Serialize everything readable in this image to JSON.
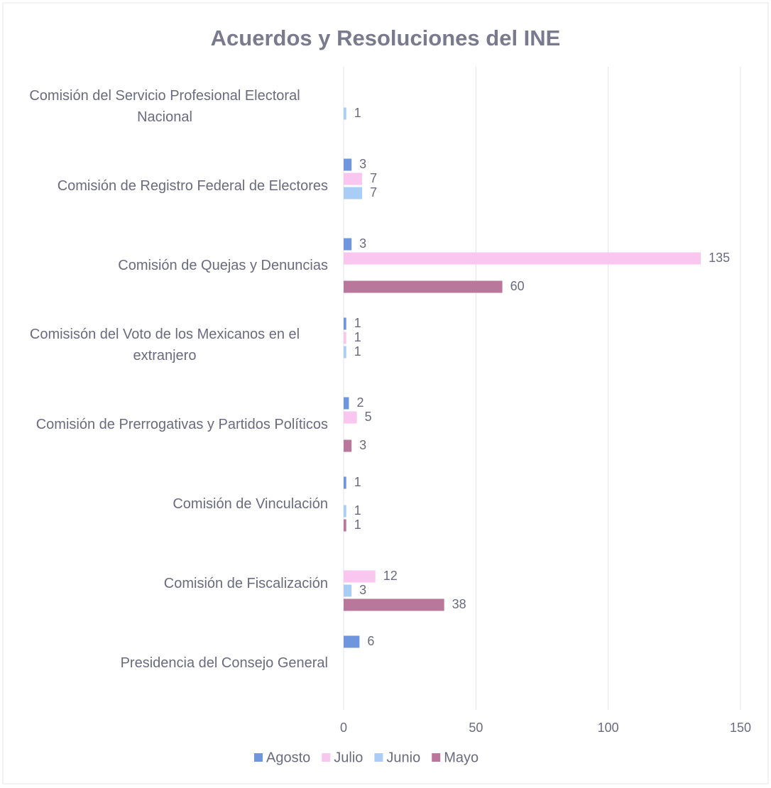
{
  "chart_data": {
    "type": "barh",
    "title": "Acuerdos y Resoluciones del INE",
    "categories": [
      "Comisión del Servicio Profesional Electoral Nacional",
      "Comisión de Registro Federal de Electores",
      "Comisión de Quejas y Denuncias",
      "Comisisón del Voto de los Mexicanos en el extranjero",
      "Comisión de Prerrogativas y Partidos Políticos",
      "Comisión de Vinculación",
      "Comisión de Fiscalización",
      "Presidencia del Consejo General"
    ],
    "series": [
      {
        "name": "Agosto",
        "color": "#6f95dc",
        "values": [
          null,
          3,
          3,
          1,
          2,
          1,
          null,
          6
        ]
      },
      {
        "name": "Julio",
        "color": "#f8c6ee",
        "values": [
          null,
          7,
          135,
          1,
          5,
          null,
          12,
          null
        ]
      },
      {
        "name": "Junio",
        "color": "#a9cdf5",
        "values": [
          1,
          7,
          null,
          1,
          null,
          1,
          3,
          null
        ]
      },
      {
        "name": "Mayo",
        "color": "#b8779b",
        "values": [
          null,
          null,
          60,
          null,
          3,
          1,
          38,
          null
        ]
      }
    ],
    "xlim": [
      0,
      150
    ],
    "xticks": [
      0,
      50,
      100,
      150
    ],
    "grid": true,
    "legend": "bottom"
  }
}
